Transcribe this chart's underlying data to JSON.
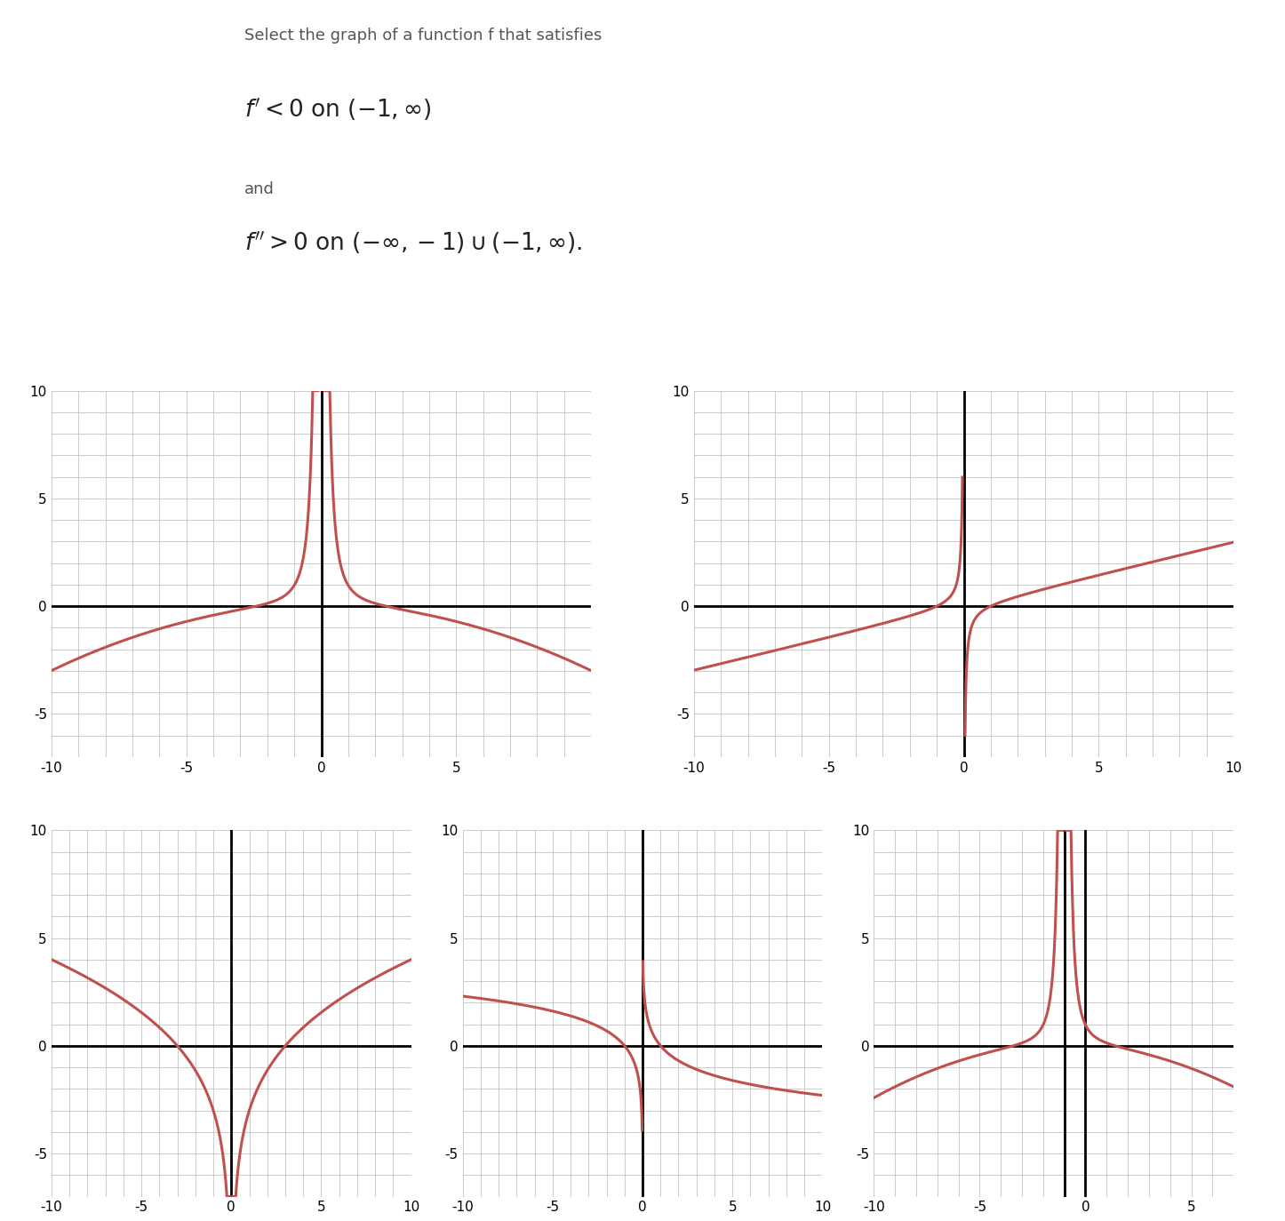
{
  "title_text": "Select the graph of a function f that satisfies",
  "and_text": "and",
  "curve_color": "#c0504d",
  "curve_linewidth": 2.2,
  "grid_color": "#b8b8b8",
  "grid_linewidth": 0.5,
  "axis_color": "#000000",
  "axis_linewidth": 2.0,
  "tick_fontsize": 11,
  "text_fontsize": 13,
  "math_fontsize": 19,
  "bg_color": "#ffffff",
  "text_color_title": "#555555",
  "text_color_math": "#222222"
}
